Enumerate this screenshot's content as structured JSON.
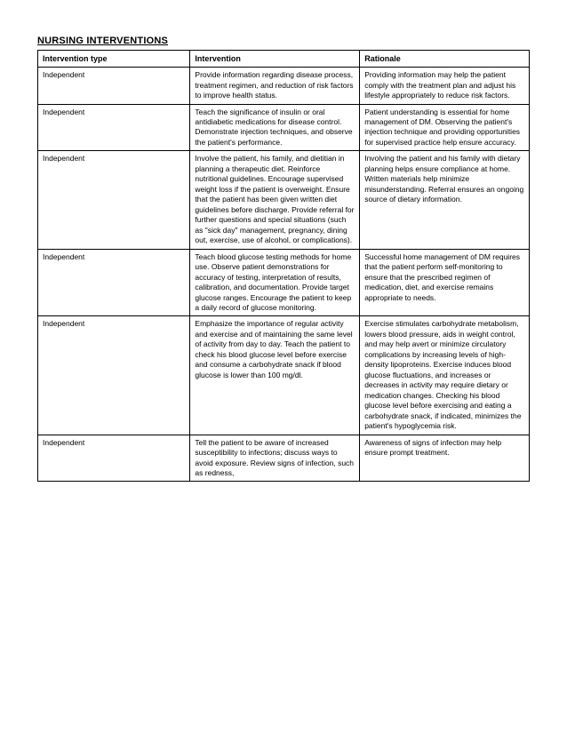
{
  "title": "NURSING INTERVENTIONS",
  "columns": [
    "Intervention type",
    "Intervention",
    "Rationale"
  ],
  "rows": [
    {
      "type": "Independent",
      "intervention": "Provide information regarding disease process, treatment regimen, and reduction of risk factors to improve health status.",
      "rationale": "Providing information may help the patient comply with the treatment plan and adjust his lifestyle appropriately to reduce risk factors."
    },
    {
      "type": "Independent",
      "intervention": "Teach the significance of insulin or oral antidiabetic medications for disease control. Demonstrate injection techniques, and observe the patient's performance.",
      "rationale": "Patient understanding is essential for home management of DM. Observing the patient's injection technique and providing opportunities for supervised practice help ensure accuracy."
    },
    {
      "type": "Independent",
      "intervention": "Involve the patient, his family, and dietitian in planning a therapeutic diet. Reinforce nutritional guidelines. Encourage supervised weight loss if the patient is overweight. Ensure that the patient has been given written diet guidelines before discharge. Provide referral for further questions and special situations (such as \"sick day\" management, pregnancy, dining out, exercise, use of alcohol, or complications).",
      "rationale": "Involving the patient and his family with dietary planning helps ensure compliance at home. Written materials help minimize misunderstanding. Referral ensures an ongoing source of dietary information."
    },
    {
      "type": "Independent",
      "intervention": "Teach blood glucose testing methods for home use. Observe patient demonstrations for accuracy of testing, interpretation of results, calibration, and documentation. Provide target glucose ranges. Encourage the patient to keep a daily record of glucose monitoring.",
      "rationale": "Successful home management of DM requires that the patient perform self-monitoring to ensure that the prescribed regimen of medication, diet, and exercise remains appropriate to needs."
    },
    {
      "type": "Independent",
      "intervention": "Emphasize the importance of regular activity and exercise and of maintaining the same level of activity from day to day. Teach the patient to check his blood glucose level before exercise and consume a carbohydrate snack if blood glucose is lower than 100 mg/dl.",
      "rationale": "Exercise stimulates carbohydrate metabolism, lowers blood pressure, aids in weight control, and may help avert or minimize circulatory complications by increasing levels of high-density lipoproteins. Exercise induces blood glucose fluctuations, and increases or decreases in activity may require dietary or medication changes. Checking his blood glucose level before exercising and eating a carbohydrate snack, if indicated, minimizes the patient's hypoglycemia risk."
    },
    {
      "type": "Independent",
      "intervention": "Tell the patient to be aware of increased susceptibility to infections; discuss ways to avoid exposure. Review signs of infection, such as redness,",
      "rationale": "Awareness of signs of infection may help ensure prompt treatment."
    }
  ],
  "style": {
    "page_bg": "#ffffff",
    "border_color": "#000000",
    "title_fontsize": 11,
    "header_fontsize": 9,
    "cell_fontsize": 8.5,
    "col_widths_pct": [
      31,
      34.5,
      34.5
    ]
  }
}
